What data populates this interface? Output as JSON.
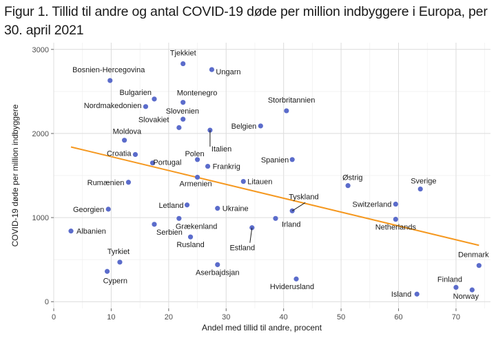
{
  "title": "Figur 1. Tillid til andre og antal COVID-19 døde per million indbyggere i Europa, per 30. april 2021",
  "chart_data": {
    "type": "scatter",
    "title": "Figur 1. Tillid til andre og antal COVID-19 døde per million indbyggere i Europa, per 30. april 2021",
    "xlabel": "Andel med tillid til andre, procent",
    "ylabel": "COVID-19 døde per million indbyggere",
    "xlim": [
      0,
      76
    ],
    "ylim": [
      -80,
      3080
    ],
    "xticks": [
      0,
      10,
      20,
      30,
      40,
      50,
      60,
      70
    ],
    "yticks": [
      0,
      1000,
      2000,
      3000
    ],
    "grid": true,
    "point_color": "#5b6ccb",
    "trend_color": "#f5981f",
    "trend_line": {
      "x": [
        3,
        74
      ],
      "y": [
        1840,
        670
      ]
    },
    "points": [
      {
        "label": "Tjekkiet",
        "x": 22.5,
        "y": 2830
      },
      {
        "label": "Ungarn",
        "x": 27.5,
        "y": 2760
      },
      {
        "label": "Bosnien-Hercegovina",
        "x": 9.8,
        "y": 2630
      },
      {
        "label": "Bulgarien",
        "x": 17.5,
        "y": 2410
      },
      {
        "label": "Montenegro",
        "x": 22.5,
        "y": 2370
      },
      {
        "label": "Nordmakedonien",
        "x": 16,
        "y": 2320
      },
      {
        "label": "Storbritannien",
        "x": 40.5,
        "y": 2270
      },
      {
        "label": "Slovenien",
        "x": 22.5,
        "y": 2170
      },
      {
        "label": "Slovakiet",
        "x": 21.8,
        "y": 2070
      },
      {
        "label": "Belgien",
        "x": 36,
        "y": 2090
      },
      {
        "label": "Italien",
        "x": 27.2,
        "y": 2040
      },
      {
        "label": "Moldova",
        "x": 12.3,
        "y": 1920
      },
      {
        "label": "Croatia",
        "x": 14.2,
        "y": 1750
      },
      {
        "label": "Portugal",
        "x": 17.2,
        "y": 1650
      },
      {
        "label": "Polen",
        "x": 25,
        "y": 1690
      },
      {
        "label": "Spanien",
        "x": 41.5,
        "y": 1690
      },
      {
        "label": "Frankrig",
        "x": 26.8,
        "y": 1610
      },
      {
        "label": "Armenien",
        "x": 25,
        "y": 1480
      },
      {
        "label": "Rumænien",
        "x": 13,
        "y": 1420
      },
      {
        "label": "Litauen",
        "x": 33,
        "y": 1430
      },
      {
        "label": "Østrig",
        "x": 51.2,
        "y": 1380
      },
      {
        "label": "Sverige",
        "x": 63.8,
        "y": 1340
      },
      {
        "label": "Letland",
        "x": 23.2,
        "y": 1150
      },
      {
        "label": "Ukraine",
        "x": 28.5,
        "y": 1110
      },
      {
        "label": "Georgien",
        "x": 9.5,
        "y": 1100
      },
      {
        "label": "Switzerland",
        "x": 59.5,
        "y": 1160
      },
      {
        "label": "Tyskland",
        "x": 41.5,
        "y": 1080
      },
      {
        "label": "Grækenland",
        "x": 21.8,
        "y": 990
      },
      {
        "label": "Irland",
        "x": 38.6,
        "y": 990
      },
      {
        "label": "Netherlands",
        "x": 59.5,
        "y": 980
      },
      {
        "label": "Serbien",
        "x": 17.5,
        "y": 920
      },
      {
        "label": "Estland",
        "x": 34.5,
        "y": 880
      },
      {
        "label": "Albanien",
        "x": 3,
        "y": 840
      },
      {
        "label": "Rusland",
        "x": 23.8,
        "y": 770
      },
      {
        "label": "Tyrkiet",
        "x": 11.5,
        "y": 470
      },
      {
        "label": "Aserbajdsjan",
        "x": 28.5,
        "y": 440
      },
      {
        "label": "Denmark",
        "x": 74,
        "y": 430
      },
      {
        "label": "Cypern",
        "x": 9.3,
        "y": 360
      },
      {
        "label": "Hviderusland",
        "x": 42.2,
        "y": 270
      },
      {
        "label": "Finland",
        "x": 70,
        "y": 170
      },
      {
        "label": "Norway",
        "x": 72.8,
        "y": 140
      },
      {
        "label": "Island",
        "x": 63.2,
        "y": 90
      }
    ]
  }
}
